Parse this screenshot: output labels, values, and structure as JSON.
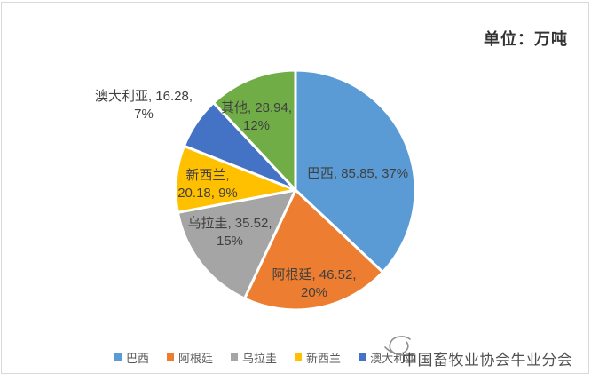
{
  "chart": {
    "unit_label": "单位：万吨",
    "watermark": "中国畜牧业协会牛业分会"
  },
  "chart_data": {
    "type": "pie",
    "title": "",
    "unit": "万吨",
    "start_angle_deg": 0,
    "direction": "clockwise",
    "legend_position": "bottom",
    "slices": [
      {
        "name": "巴西",
        "value": 85.85,
        "pct": 37,
        "color": "#5B9BD5",
        "label_lines": [
          "巴西, 85.85, 37%"
        ]
      },
      {
        "name": "阿根廷",
        "value": 46.52,
        "pct": 20,
        "color": "#ED7D31",
        "label_lines": [
          "阿根廷, 46.52,",
          "20%"
        ]
      },
      {
        "name": "乌拉圭",
        "value": 35.52,
        "pct": 15,
        "color": "#A5A5A5",
        "label_lines": [
          "乌拉圭, 35.52,",
          "15%"
        ]
      },
      {
        "name": "新西兰",
        "value": 20.18,
        "pct": 9,
        "color": "#FFC000",
        "label_lines": [
          "新西兰,",
          "20.18, 9%"
        ]
      },
      {
        "name": "澳大利亚",
        "value": 16.28,
        "pct": 7,
        "color": "#4472C4",
        "label_lines": [
          "澳大利亚, 16.28,",
          "7%"
        ]
      },
      {
        "name": "其他",
        "value": 28.94,
        "pct": 12,
        "color": "#70AD47",
        "label_lines": [
          "其他, 28.94,",
          "12%"
        ]
      }
    ],
    "legend_items": [
      "巴西",
      "阿根廷",
      "乌拉圭",
      "新西兰",
      "澳大利亚"
    ]
  }
}
